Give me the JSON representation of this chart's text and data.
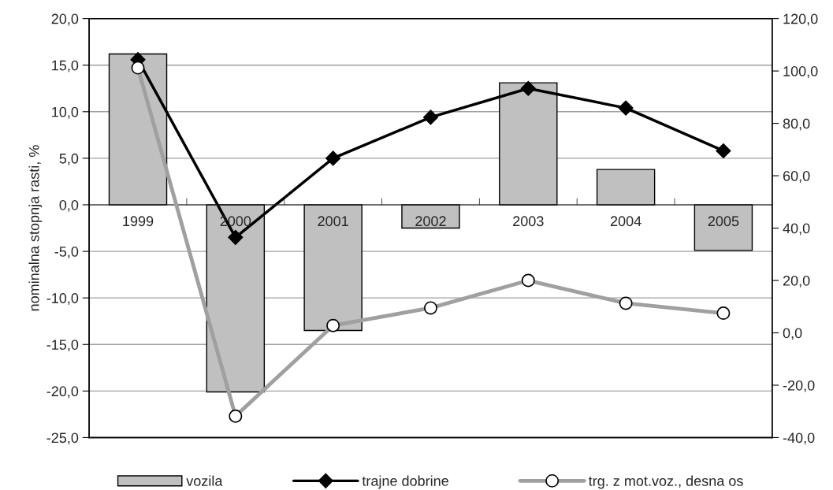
{
  "chart_data": {
    "type": "bar",
    "ylabel": "nominalna stopnja rasti, %",
    "categories": [
      "1999",
      "2000",
      "2001",
      "2002",
      "2003",
      "2004",
      "2005"
    ],
    "series": [
      {
        "name": "vozila",
        "color": "#c0c0c0",
        "values": [
          16.2,
          -20.1,
          -13.5,
          -2.5,
          13.1,
          3.8,
          -4.9
        ]
      },
      {
        "name": "trajne dobrine",
        "type": "line",
        "color": "#000000",
        "marker": "diamond",
        "values": [
          15.6,
          -3.5,
          5.0,
          9.4,
          12.5,
          10.4,
          5.8
        ]
      },
      {
        "name": "trg. z mot.voz., desna os",
        "type": "line",
        "axis": "y2",
        "color": "#a0a0a0",
        "marker": "circle",
        "values": [
          101.2,
          -31.8,
          2.8,
          9.5,
          20.0,
          11.3,
          7.5
        ]
      }
    ],
    "ylim": [
      -25,
      20
    ],
    "yticks": [
      {
        "value": -25,
        "label": "-25,0"
      },
      {
        "value": -20,
        "label": "-20,0"
      },
      {
        "value": -15,
        "label": "-15,0"
      },
      {
        "value": -10,
        "label": "-10,0"
      },
      {
        "value": -5,
        "label": "-5,0"
      },
      {
        "value": 0,
        "label": "0,0"
      },
      {
        "value": 5,
        "label": "5,0"
      },
      {
        "value": 10,
        "label": "10,0"
      },
      {
        "value": 15,
        "label": "15,0"
      },
      {
        "value": 20,
        "label": "20,0"
      }
    ],
    "y2lim": [
      -40,
      120
    ],
    "y2ticks": [
      {
        "value": -40,
        "label": "-40,0"
      },
      {
        "value": -20,
        "label": "-20,0"
      },
      {
        "value": 0,
        "label": "0,0"
      },
      {
        "value": 20,
        "label": "20,0"
      },
      {
        "value": 40,
        "label": "40,0"
      },
      {
        "value": 60,
        "label": "60,0"
      },
      {
        "value": 80,
        "label": "80,0"
      },
      {
        "value": 100,
        "label": "100,0"
      },
      {
        "value": 120,
        "label": "120,0"
      }
    ],
    "grid": "y",
    "legend": "bottom"
  }
}
